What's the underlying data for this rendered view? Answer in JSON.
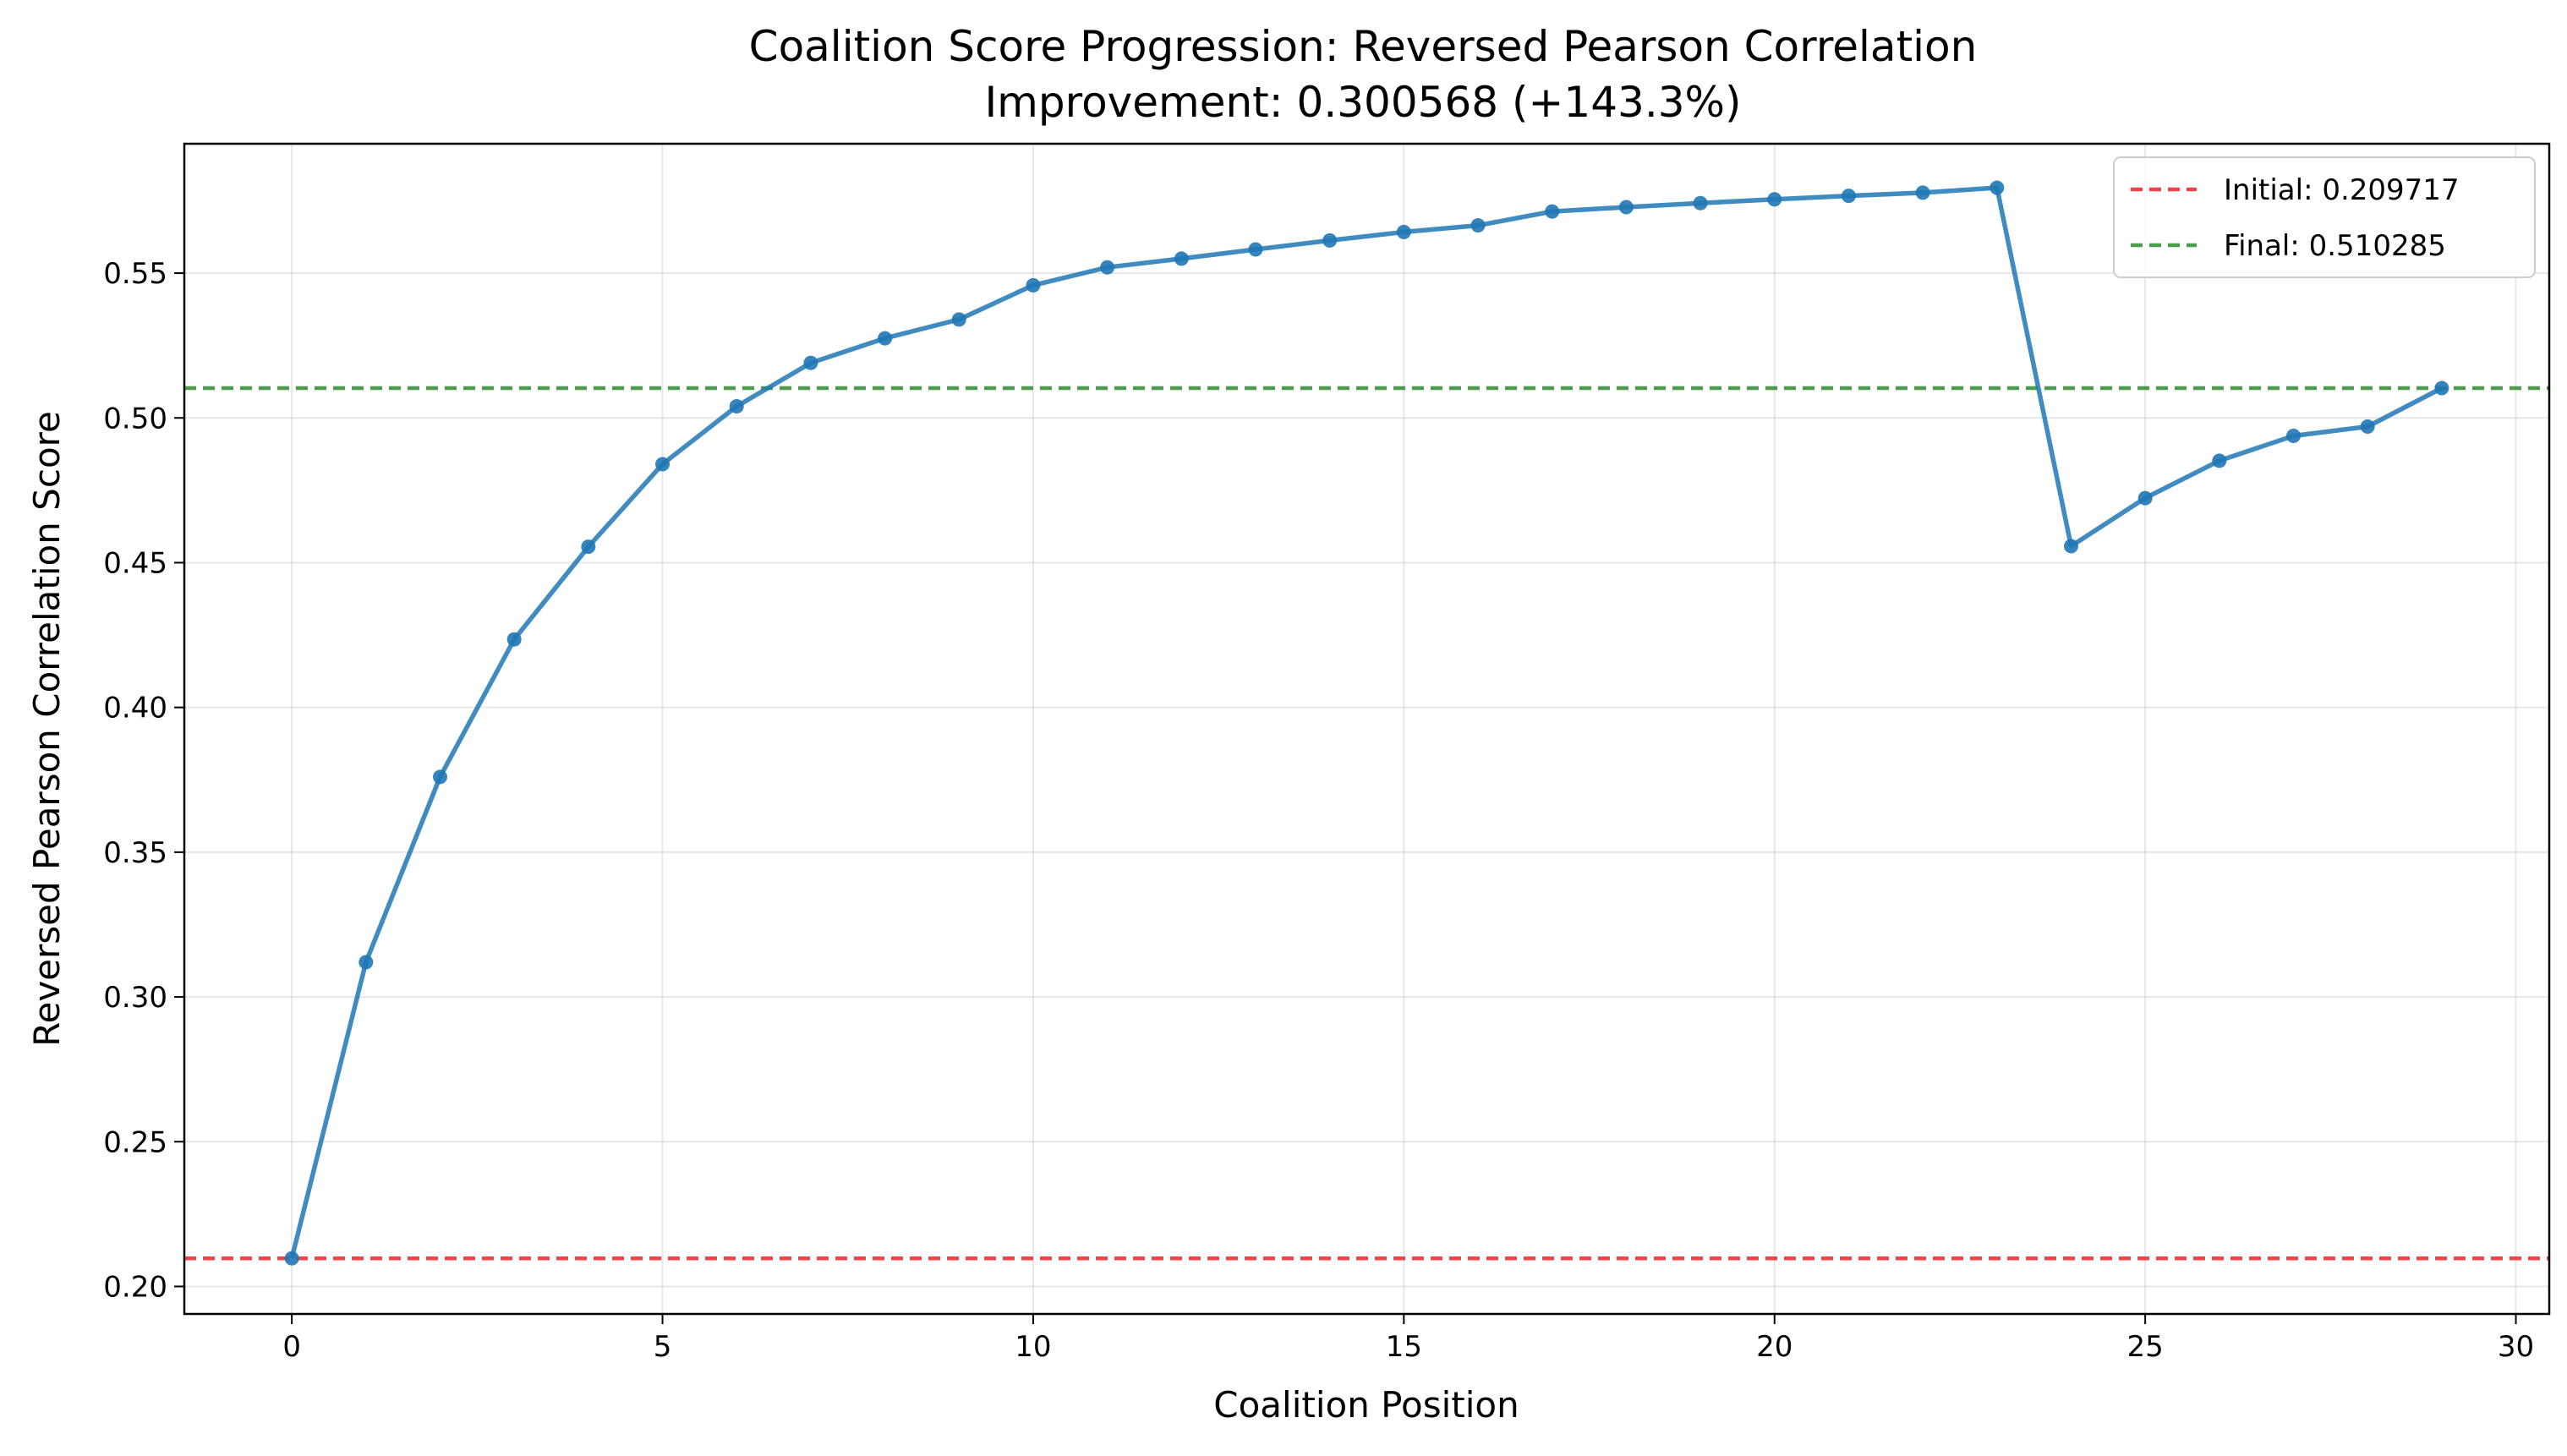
{
  "chart_data": {
    "type": "line",
    "title": "Coalition Score Progression: Reversed Pearson Correlation",
    "subtitle": "Improvement: 0.300568 (+143.3%)",
    "xlabel": "Coalition Position",
    "ylabel": "Reversed Pearson Correlation Score",
    "xlim": [
      -1.45,
      30.45
    ],
    "ylim": [
      0.1905,
      0.5947
    ],
    "grid": true,
    "legend_position": "top-right",
    "x_ticks": [
      0,
      5,
      10,
      15,
      20,
      25,
      30
    ],
    "x_tick_labels": [
      "0",
      "5",
      "10",
      "15",
      "20",
      "25",
      "30"
    ],
    "y_ticks": [
      0.2,
      0.25,
      0.3,
      0.35,
      0.4,
      0.45,
      0.5,
      0.55
    ],
    "y_tick_labels": [
      "0.20",
      "0.25",
      "0.30",
      "0.35",
      "0.40",
      "0.45",
      "0.50",
      "0.55"
    ],
    "series": [
      {
        "color": "#1f77b4",
        "x": [
          0,
          1,
          2,
          3,
          4,
          5,
          6,
          7,
          8,
          9,
          10,
          11,
          12,
          13,
          14,
          15,
          16,
          17,
          18,
          19,
          20,
          21,
          22,
          23,
          24,
          25,
          26,
          27,
          28,
          29
        ],
        "values": [
          0.209717,
          0.312,
          0.376,
          0.4235,
          0.4555,
          0.484,
          0.504,
          0.519,
          0.5275,
          0.534,
          0.5458,
          0.552,
          0.555,
          0.5582,
          0.5613,
          0.5642,
          0.5665,
          0.5713,
          0.5728,
          0.5742,
          0.5755,
          0.5767,
          0.5778,
          0.5795,
          0.4557,
          0.4723,
          0.4852,
          0.4938,
          0.497,
          0.510285
        ]
      }
    ],
    "reference_lines": [
      {
        "label": "Initial: 0.209717",
        "value": 0.209717,
        "color": "#e8262a",
        "style": "dashed"
      },
      {
        "label": "Final: 0.510285",
        "value": 0.510285,
        "color": "#2e8b2e",
        "style": "dashed"
      }
    ]
  }
}
